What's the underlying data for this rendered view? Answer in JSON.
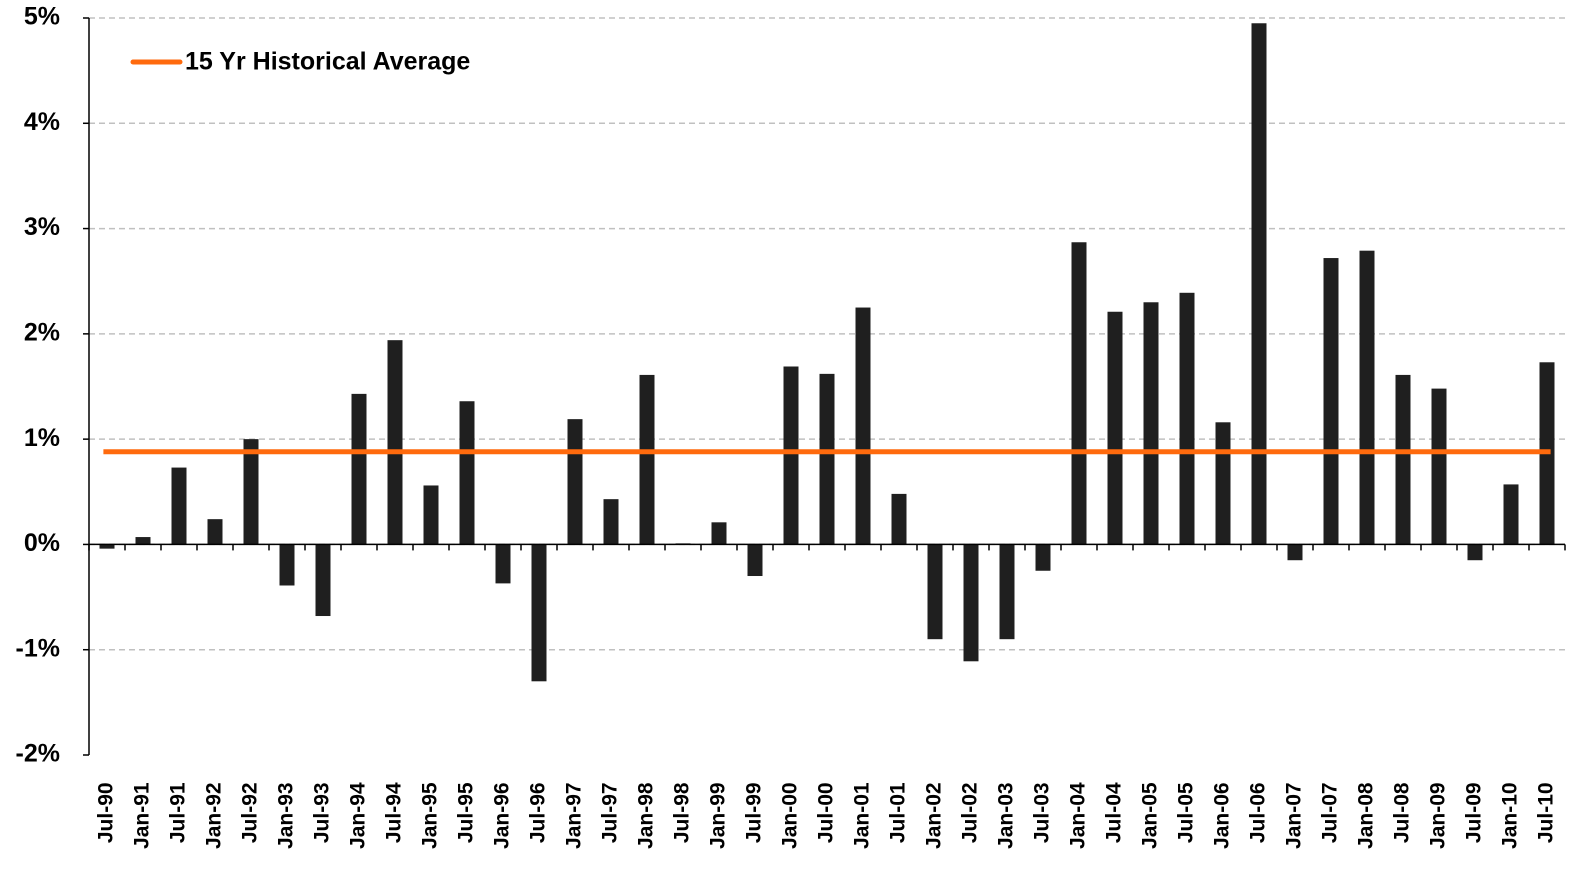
{
  "chart_data": {
    "type": "bar",
    "categories": [
      "Jul-90",
      "Jan-91",
      "Jul-91",
      "Jan-92",
      "Jul-92",
      "Jan-93",
      "Jul-93",
      "Jan-94",
      "Jul-94",
      "Jan-95",
      "Jul-95",
      "Jan-96",
      "Jul-96",
      "Jan-97",
      "Jul-97",
      "Jan-98",
      "Jul-98",
      "Jan-99",
      "Jul-99",
      "Jan-00",
      "Jul-00",
      "Jan-01",
      "Jul-01",
      "Jan-02",
      "Jul-02",
      "Jan-03",
      "Jul-03",
      "Jan-04",
      "Jul-04",
      "Jan-05",
      "Jul-05",
      "Jan-06",
      "Jul-06",
      "Jan-07",
      "Jul-07",
      "Jan-08",
      "Jul-08",
      "Jan-09",
      "Jul-09",
      "Jan-10",
      "Jul-10"
    ],
    "values": [
      -0.04,
      0.07,
      0.73,
      0.24,
      1.0,
      -0.39,
      -0.68,
      1.43,
      1.94,
      0.56,
      1.36,
      -0.37,
      -1.3,
      1.19,
      0.43,
      1.61,
      0.01,
      0.21,
      -0.3,
      1.69,
      1.62,
      2.25,
      0.48,
      -0.9,
      -1.11,
      -0.9,
      -0.25,
      2.87,
      2.21,
      2.3,
      2.39,
      1.16,
      4.95,
      -0.15,
      2.72,
      2.79,
      1.61,
      1.48,
      -0.15,
      0.57,
      1.73
    ],
    "color": "#1f1f1f",
    "average_line": {
      "name": "15 Yr Historical Average",
      "value": 0.88,
      "color": "#ff6a0d"
    },
    "ylim": [
      -2,
      5
    ],
    "yticks": [
      {
        "value": -2,
        "label": "-2%"
      },
      {
        "value": -1,
        "label": "-1%"
      },
      {
        "value": 0,
        "label": "0%"
      },
      {
        "value": 1,
        "label": "1%"
      },
      {
        "value": 2,
        "label": "2%"
      },
      {
        "value": 3,
        "label": "3%"
      },
      {
        "value": 4,
        "label": "4%"
      },
      {
        "value": 5,
        "label": "5%"
      }
    ],
    "grid": true
  }
}
